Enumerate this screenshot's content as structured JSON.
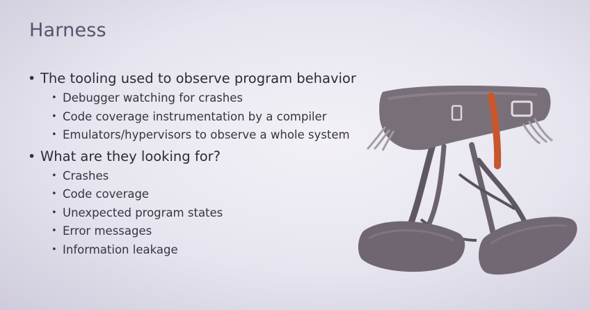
{
  "slide": {
    "title": "Harness",
    "bullets": [
      {
        "text": "The tooling used to observe program behavior",
        "sub": [
          "Debugger watching for crashes",
          "Code coverage instrumentation by a compiler",
          "Emulators/hypervisors to observe a whole system"
        ]
      },
      {
        "text": "What are they looking for?",
        "sub": [
          "Crashes",
          "Code coverage",
          "Unexpected program states",
          "Error messages",
          "Information leakage"
        ]
      }
    ]
  },
  "colors": {
    "background": "#e6e4ee",
    "title": "#55546a",
    "text": "#2c2b36",
    "harness_body": "#6e6670",
    "harness_accent": "#c7562e"
  },
  "image": {
    "subject": "climbing-harness-photo"
  }
}
